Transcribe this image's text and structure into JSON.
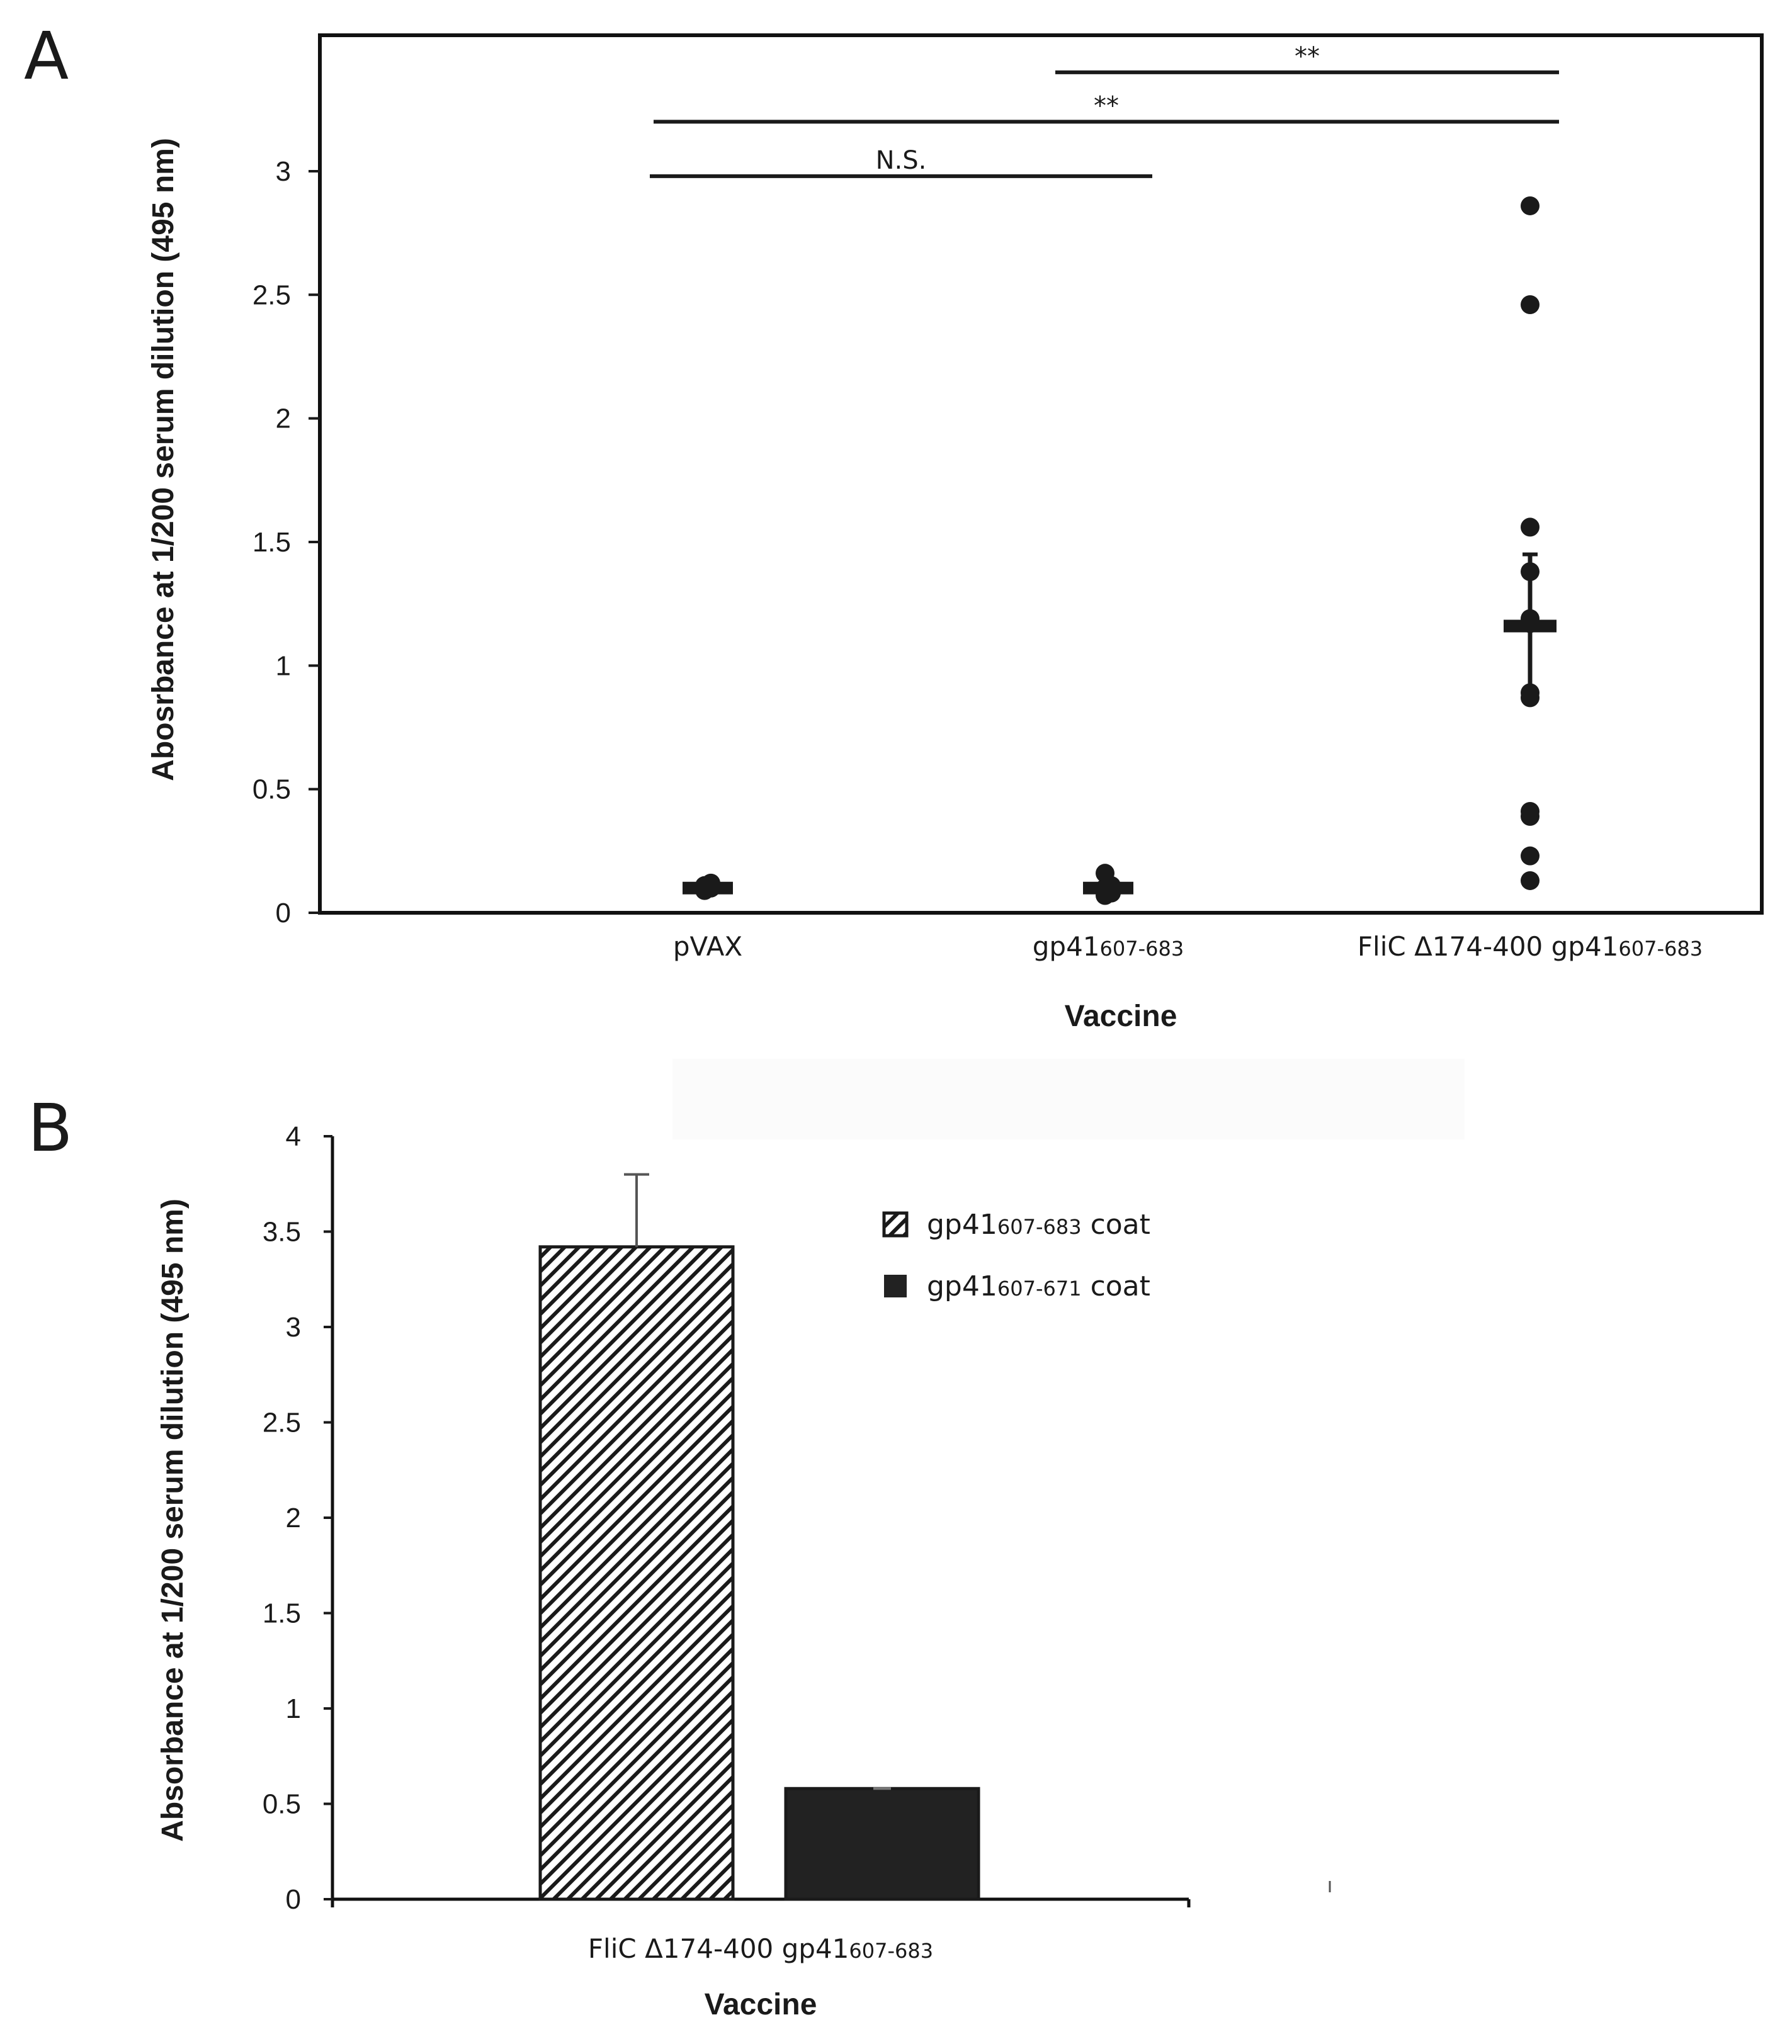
{
  "chart_data": [
    {
      "panel": "A",
      "type": "scatter",
      "title": "",
      "xlabel": "Vaccine",
      "ylabel": "Abosrbance at 1/200 serum dilution (495 nm)",
      "ylim": [
        0,
        3.55
      ],
      "yticks": [
        "0",
        "0.5",
        "1",
        "1.5",
        "2",
        "2.5",
        "3"
      ],
      "categories": [
        {
          "main": "pVAX",
          "sub": ""
        },
        {
          "main": "gp41",
          "sub": "607-683"
        },
        {
          "main": "FliC Δ174-400 gp41",
          "sub": "607-683"
        }
      ],
      "points": [
        [
          0.09,
          0.1,
          0.11,
          0.12
        ],
        [
          0.07,
          0.08,
          0.1,
          0.11,
          0.16
        ],
        [
          0.13,
          0.23,
          0.39,
          0.41,
          0.87,
          0.89,
          1.17,
          1.19,
          1.38,
          1.56,
          2.46,
          2.86
        ]
      ],
      "means": [
        0.1,
        0.1,
        1.16
      ],
      "errors": [
        0,
        0,
        0.29
      ],
      "significance": [
        {
          "from": 0,
          "to": 1,
          "label": "N.S.",
          "y": 2.98
        },
        {
          "from": 0,
          "to": 2,
          "label": "**",
          "y": 3.2
        },
        {
          "from": 1,
          "to": 2,
          "label": "**",
          "y": 3.4
        }
      ],
      "grid": false
    },
    {
      "panel": "B",
      "type": "bar",
      "title": "",
      "xlabel": "Vaccine",
      "ylabel": "Absorbance at 1/200 serum dilution (495 nm)",
      "ylim": [
        0,
        4
      ],
      "yticks": [
        "0",
        "0.5",
        "1",
        "1.5",
        "2",
        "2.5",
        "3",
        "3.5",
        "4"
      ],
      "categories": [
        {
          "main": "FliC Δ174-400 gp41",
          "sub": "607-683"
        }
      ],
      "series": [
        {
          "name": "gp41",
          "sub": "607-683",
          "suffix": "coat",
          "values": [
            3.42
          ],
          "errors": [
            0.38
          ],
          "pattern": "hatched"
        },
        {
          "name": "gp41",
          "sub": "607-671",
          "suffix": "coat",
          "values": [
            0.58
          ],
          "errors": [
            0.0
          ],
          "pattern": "solid"
        }
      ],
      "legend_position": "top-right",
      "grid": false
    }
  ],
  "colors": {
    "ink": "#1a1a1a",
    "bar_solid": "#222222",
    "hatch": "#1a1a1a",
    "background": "#ffffff"
  }
}
